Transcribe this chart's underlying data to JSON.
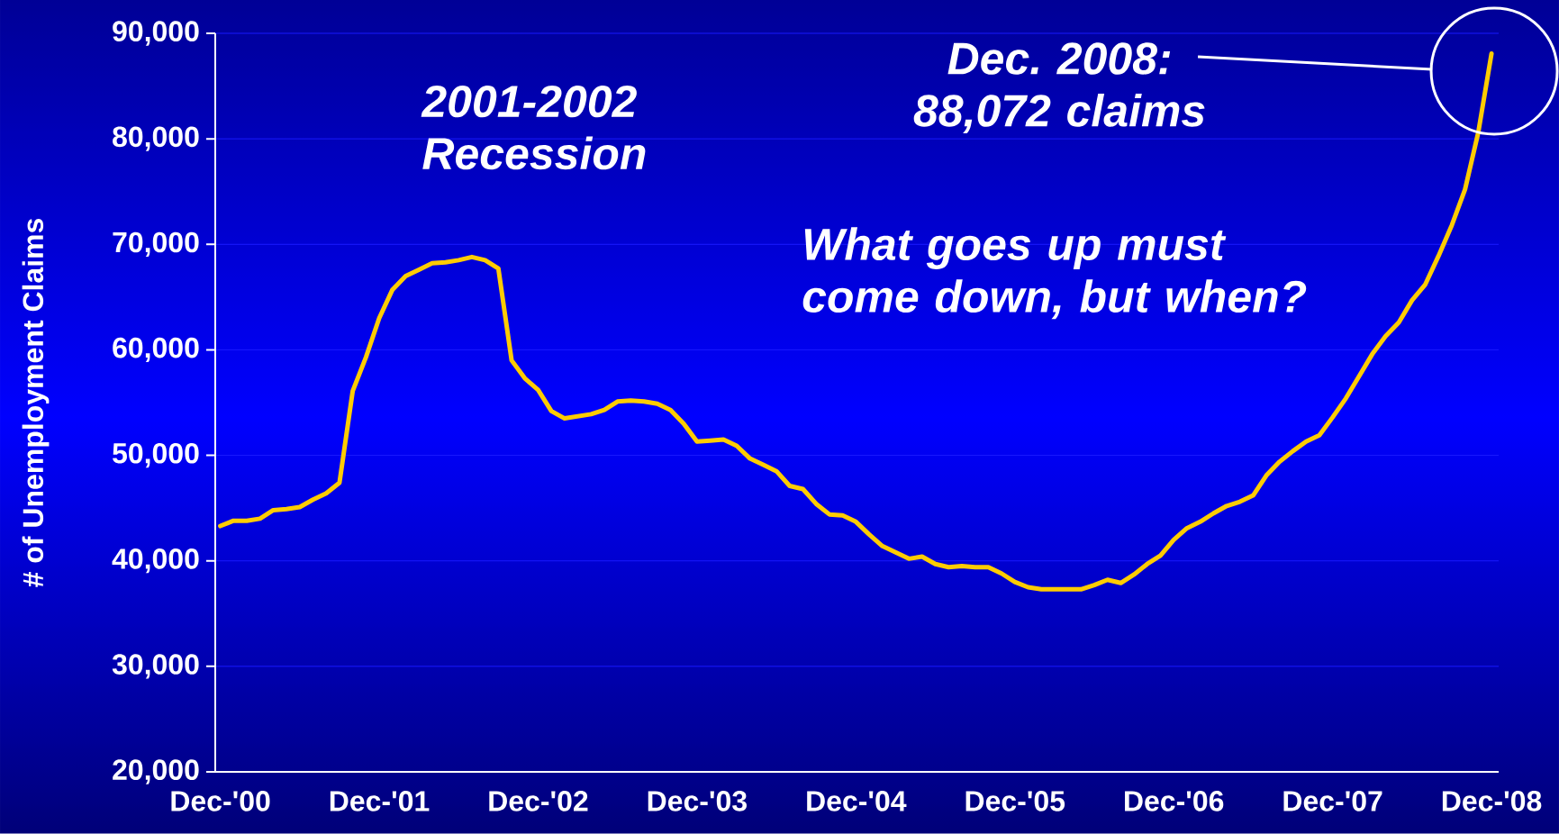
{
  "chart_data": {
    "type": "line",
    "ylabel": "# of Unemployment Claims",
    "x": [
      "2000-12",
      "2001-01",
      "2001-02",
      "2001-03",
      "2001-04",
      "2001-05",
      "2001-06",
      "2001-07",
      "2001-08",
      "2001-09",
      "2001-10",
      "2001-11",
      "2001-12",
      "2002-01",
      "2002-02",
      "2002-03",
      "2002-04",
      "2002-05",
      "2002-06",
      "2002-07",
      "2002-08",
      "2002-09",
      "2002-10",
      "2002-11",
      "2002-12",
      "2003-01",
      "2003-02",
      "2003-03",
      "2003-04",
      "2003-05",
      "2003-06",
      "2003-07",
      "2003-08",
      "2003-09",
      "2003-10",
      "2003-11",
      "2003-12",
      "2004-01",
      "2004-02",
      "2004-03",
      "2004-04",
      "2004-05",
      "2004-06",
      "2004-07",
      "2004-08",
      "2004-09",
      "2004-10",
      "2004-11",
      "2004-12",
      "2005-01",
      "2005-02",
      "2005-03",
      "2005-04",
      "2005-05",
      "2005-06",
      "2005-07",
      "2005-08",
      "2005-09",
      "2005-10",
      "2005-11",
      "2005-12",
      "2006-01",
      "2006-02",
      "2006-03",
      "2006-04",
      "2006-05",
      "2006-06",
      "2006-07",
      "2006-08",
      "2006-09",
      "2006-10",
      "2006-11",
      "2006-12",
      "2007-01",
      "2007-02",
      "2007-03",
      "2007-04",
      "2007-05",
      "2007-06",
      "2007-07",
      "2007-08",
      "2007-09",
      "2007-10",
      "2007-11",
      "2007-12",
      "2008-01",
      "2008-02",
      "2008-03",
      "2008-04",
      "2008-05",
      "2008-06",
      "2008-07",
      "2008-08",
      "2008-09",
      "2008-10",
      "2008-11",
      "2008-12"
    ],
    "series": [
      {
        "color": "#ffcc00",
        "values": [
          43300,
          43800,
          43800,
          44000,
          44800,
          44900,
          45100,
          45800,
          46400,
          47400,
          56100,
          59300,
          63000,
          65700,
          67000,
          67600,
          68200,
          68300,
          68500,
          68800,
          68500,
          67700,
          59000,
          57300,
          56200,
          54200,
          53500,
          53700,
          53900,
          54300,
          55100,
          55200,
          55100,
          54900,
          54300,
          53000,
          51300,
          51400,
          51500,
          50900,
          49700,
          49100,
          48500,
          47100,
          46800,
          45400,
          44400,
          44300,
          43700,
          42500,
          41400,
          40800,
          40200,
          40400,
          39700,
          39400,
          39500,
          39400,
          39400,
          38800,
          38000,
          37500,
          37300,
          37300,
          37300,
          37300,
          37700,
          38200,
          37900,
          38700,
          39700,
          40500,
          42000,
          43100,
          43700,
          44500,
          45200,
          45600,
          46200,
          48100,
          49400,
          50400,
          51300,
          51900,
          53600,
          55400,
          57500,
          59600,
          61300,
          62600,
          64700,
          66200,
          68900,
          71800,
          75200,
          80600,
          88072
        ]
      }
    ],
    "xlim": [
      "2000-12",
      "2008-12"
    ],
    "xticks": [
      {
        "value": "2000-12",
        "label": "Dec-'00"
      },
      {
        "value": "2001-12",
        "label": "Dec-'01"
      },
      {
        "value": "2002-12",
        "label": "Dec-'02"
      },
      {
        "value": "2003-12",
        "label": "Dec-'03"
      },
      {
        "value": "2004-12",
        "label": "Dec-'04"
      },
      {
        "value": "2005-12",
        "label": "Dec-'05"
      },
      {
        "value": "2006-12",
        "label": "Dec-'06"
      },
      {
        "value": "2007-12",
        "label": "Dec-'07"
      },
      {
        "value": "2008-12",
        "label": "Dec-'08"
      }
    ],
    "ylim": [
      20000,
      90000
    ],
    "yticks": [
      {
        "value": 20000,
        "label": "20,000"
      },
      {
        "value": 30000,
        "label": "30,000"
      },
      {
        "value": 40000,
        "label": "40,000"
      },
      {
        "value": 50000,
        "label": "50,000"
      },
      {
        "value": 60000,
        "label": "60,000"
      },
      {
        "value": 70000,
        "label": "70,000"
      },
      {
        "value": 80000,
        "label": "80,000"
      },
      {
        "value": 90000,
        "label": "90,000"
      }
    ],
    "grid": "y",
    "marker": "none",
    "line_style": "solid",
    "annotations": [
      "2001-2002 Recession",
      "Dec. 2008: 88,072 claims",
      "What goes up must come down, but when?"
    ]
  }
}
